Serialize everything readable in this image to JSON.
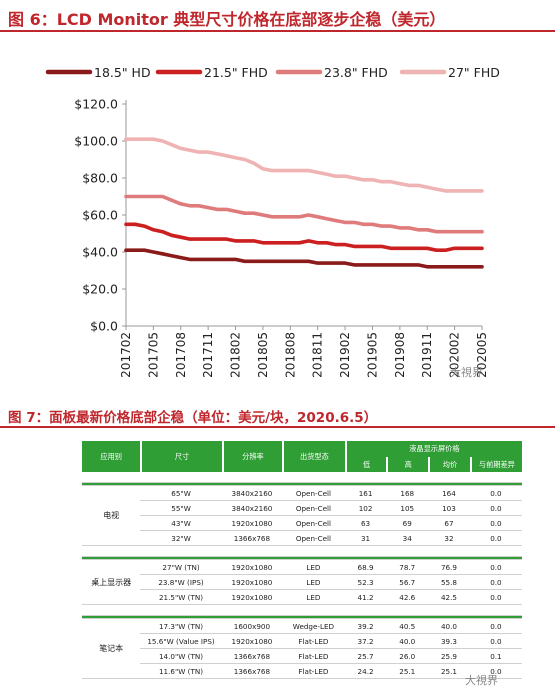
{
  "figure6": {
    "title": "图 6：LCD Monitor 典型尺寸价格在底部逐步企稳（美元）"
  },
  "figure7": {
    "title": "图 7：面板最新价格底部企稳（单位：美元/块，2020.6.5）"
  },
  "watermarks": [
    "大視界",
    "大視界"
  ],
  "chart_data": {
    "type": "line",
    "x": [
      "201702",
      "201703",
      "201704",
      "201705",
      "201706",
      "201707",
      "201708",
      "201709",
      "201710",
      "201711",
      "201712",
      "201801",
      "201802",
      "201803",
      "201804",
      "201805",
      "201806",
      "201807",
      "201808",
      "201809",
      "201810",
      "201811",
      "201812",
      "201901",
      "201902",
      "201903",
      "201904",
      "201905",
      "201906",
      "201907",
      "201908",
      "201909",
      "201910",
      "201911",
      "201912",
      "202001",
      "202002",
      "202003",
      "202004",
      "202005"
    ],
    "xticks": [
      "201702",
      "201705",
      "201708",
      "201711",
      "201802",
      "201805",
      "201808",
      "201811",
      "201902",
      "201905",
      "201908",
      "201911",
      "202002",
      "202005"
    ],
    "yticks": [
      "$0.0",
      "$20.0",
      "$40.0",
      "$60.0",
      "$80.0",
      "$100.0",
      "$120.0"
    ],
    "ylim": [
      0,
      120
    ],
    "legend_position": "top",
    "series": [
      {
        "name": "18.5\" HD",
        "color": "#8b1a1a",
        "values": [
          41,
          41,
          41,
          40,
          39,
          38,
          37,
          36,
          36,
          36,
          36,
          36,
          36,
          35,
          35,
          35,
          35,
          35,
          35,
          35,
          35,
          34,
          34,
          34,
          34,
          33,
          33,
          33,
          33,
          33,
          33,
          33,
          33,
          32,
          32,
          32,
          32,
          32,
          32,
          32
        ]
      },
      {
        "name": "21.5\" FHD",
        "color": "#cc1f1f",
        "values": [
          55,
          55,
          54,
          52,
          51,
          49,
          48,
          47,
          47,
          47,
          47,
          47,
          46,
          46,
          46,
          45,
          45,
          45,
          45,
          45,
          46,
          45,
          45,
          44,
          44,
          43,
          43,
          43,
          43,
          42,
          42,
          42,
          42,
          42,
          41,
          41,
          42,
          42,
          42,
          42
        ]
      },
      {
        "name": "23.8\" FHD",
        "color": "#e07b7b",
        "values": [
          70,
          70,
          70,
          70,
          70,
          68,
          66,
          65,
          65,
          64,
          63,
          63,
          62,
          61,
          61,
          60,
          59,
          59,
          59,
          59,
          60,
          59,
          58,
          57,
          56,
          56,
          55,
          55,
          54,
          54,
          53,
          53,
          52,
          52,
          51,
          51,
          51,
          51,
          51,
          51
        ]
      },
      {
        "name": "27\" FHD",
        "color": "#efb3b3",
        "values": [
          101,
          101,
          101,
          101,
          100,
          98,
          96,
          95,
          94,
          94,
          93,
          92,
          91,
          90,
          88,
          85,
          84,
          84,
          84,
          84,
          84,
          83,
          82,
          81,
          81,
          80,
          79,
          79,
          78,
          78,
          77,
          76,
          76,
          75,
          74,
          73,
          73,
          73,
          73,
          73
        ]
      }
    ]
  },
  "table": {
    "headers": {
      "category": "应用别",
      "size": "尺寸",
      "resolution": "分辨率",
      "type": "出货型态",
      "price_group": "液晶显示屏价格",
      "low": "低",
      "high": "高",
      "avg": "均价",
      "diff": "与前期差异"
    },
    "groups": [
      {
        "name": "电视",
        "rows": [
          {
            "size": "65\"W",
            "res": "3840x2160",
            "type": "Open-Cell",
            "low": "161",
            "high": "168",
            "avg": "164",
            "diff": "0.0"
          },
          {
            "size": "55\"W",
            "res": "3840x2160",
            "type": "Open-Cell",
            "low": "102",
            "high": "105",
            "avg": "103",
            "diff": "0.0"
          },
          {
            "size": "43\"W",
            "res": "1920x1080",
            "type": "Open-Cell",
            "low": "63",
            "high": "69",
            "avg": "67",
            "diff": "0.0"
          },
          {
            "size": "32\"W",
            "res": "1366x768",
            "type": "Open-Cell",
            "low": "31",
            "high": "34",
            "avg": "32",
            "diff": "0.0"
          }
        ]
      },
      {
        "name": "桌上显示器",
        "rows": [
          {
            "size": "27\"W (TN)",
            "res": "1920x1080",
            "type": "LED",
            "low": "68.9",
            "high": "78.7",
            "avg": "76.9",
            "diff": "0.0"
          },
          {
            "size": "23.8\"W (IPS)",
            "res": "1920x1080",
            "type": "LED",
            "low": "52.3",
            "high": "56.7",
            "avg": "55.8",
            "diff": "0.0"
          },
          {
            "size": "21.5\"W (TN)",
            "res": "1920x1080",
            "type": "LED",
            "low": "41.2",
            "high": "42.6",
            "avg": "42.5",
            "diff": "0.0"
          }
        ]
      },
      {
        "name": "笔记本",
        "rows": [
          {
            "size": "17.3\"W (TN)",
            "res": "1600x900",
            "type": "Wedge-LED",
            "low": "39.2",
            "high": "40.5",
            "avg": "40.0",
            "diff": "0.0"
          },
          {
            "size": "15.6\"W (Value IPS)",
            "res": "1920x1080",
            "type": "Flat-LED",
            "low": "37.2",
            "high": "40.0",
            "avg": "39.3",
            "diff": "0.0"
          },
          {
            "size": "14.0\"W (TN)",
            "res": "1366x768",
            "type": "Flat-LED",
            "low": "25.7",
            "high": "26.0",
            "avg": "25.9",
            "diff": "0.1"
          },
          {
            "size": "11.6\"W (TN)",
            "res": "1366x768",
            "type": "Flat-LED",
            "low": "24.2",
            "high": "25.1",
            "avg": "25.1",
            "diff": "0.0"
          }
        ]
      }
    ]
  }
}
